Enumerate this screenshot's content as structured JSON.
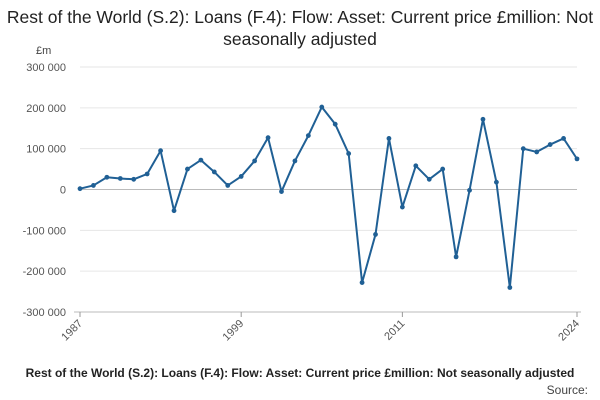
{
  "chart_data": {
    "type": "line",
    "title": "Rest of the World (S.2): Loans (F.4): Flow: Asset: Current price £million: Not seasonally adjusted",
    "unit_label": "£m",
    "xlabel": "",
    "ylabel": "",
    "ylim": [
      -300000,
      300000
    ],
    "y_ticks": [
      300000,
      200000,
      100000,
      0,
      -100000,
      -200000,
      -300000
    ],
    "y_tick_labels": [
      "300 000",
      "200 000",
      "100 000",
      "0",
      "-100 000",
      "-200 000",
      "-300 000"
    ],
    "x_ticks": [
      1987,
      1999,
      2011,
      2024
    ],
    "x_tick_labels": [
      "1987",
      "1999",
      "2011",
      "2024"
    ],
    "grid": true,
    "line_color": "#206095",
    "x": [
      1987,
      1988,
      1989,
      1990,
      1991,
      1992,
      1993,
      1994,
      1995,
      1996,
      1997,
      1998,
      1999,
      2000,
      2001,
      2002,
      2003,
      2004,
      2005,
      2006,
      2007,
      2008,
      2009,
      2010,
      2011,
      2012,
      2013,
      2014,
      2015,
      2016,
      2017,
      2018,
      2019,
      2020,
      2021,
      2022,
      2023,
      2024
    ],
    "series": [
      {
        "values": [
          2000,
          10000,
          30000,
          27000,
          25000,
          38000,
          95000,
          -52000,
          50000,
          72000,
          43000,
          10000,
          32000,
          70000,
          127000,
          -5000,
          70000,
          132000,
          202000,
          160000,
          88000,
          -228000,
          -110000,
          125000,
          -43000,
          58000,
          25000,
          50000,
          -165000,
          -2000,
          172000,
          18000,
          -240000,
          100000,
          92000,
          110000,
          125000,
          75000
        ]
      }
    ]
  },
  "footer": {
    "title": "Rest of the World (S.2): Loans (F.4): Flow: Asset: Current price £million: Not seasonally adjusted",
    "source_label": "Source:"
  }
}
